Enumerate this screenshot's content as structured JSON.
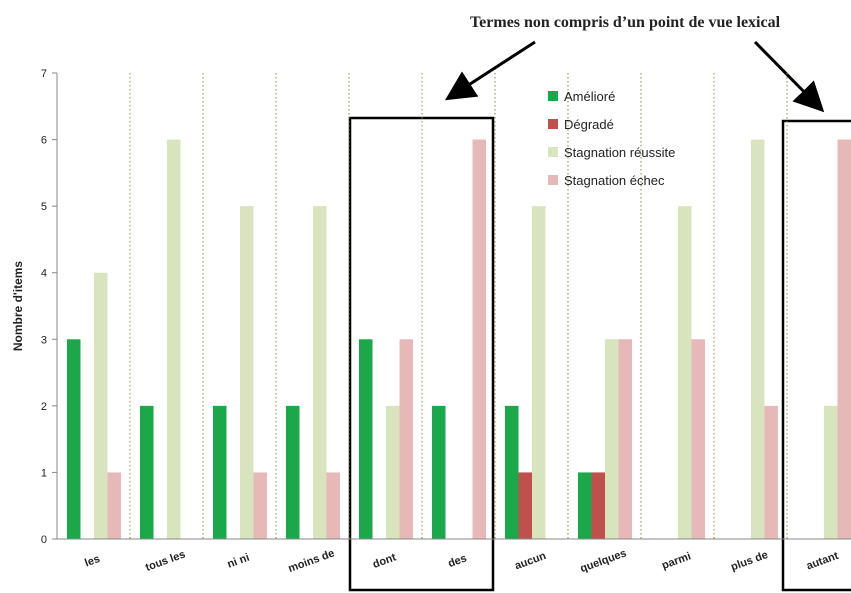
{
  "chart_data": {
    "type": "bar",
    "annotation": "Termes non compris d’un point de vue lexical",
    "y_label": "Nombre d'items",
    "categories": [
      "les",
      "tous les",
      "ni ni",
      "moins de",
      "dont",
      "des",
      "aucun",
      "quelques",
      "parmi",
      "plus de",
      "autant"
    ],
    "series": [
      {
        "name": "Amélioré",
        "color": "#1aa84b",
        "values": [
          3,
          2,
          2,
          2,
          3,
          2,
          2,
          1,
          0,
          0,
          0
        ]
      },
      {
        "name": "Dégradé",
        "color": "#c0504d",
        "values": [
          0,
          0,
          0,
          0,
          0,
          0,
          1,
          1,
          0,
          0,
          0
        ]
      },
      {
        "name": "Stagnation réussite",
        "color": "#d7e4bd",
        "values": [
          4,
          6,
          5,
          5,
          2,
          0,
          5,
          3,
          5,
          6,
          2
        ]
      },
      {
        "name": "Stagnation échec",
        "color": "#e6b9b8",
        "values": [
          1,
          0,
          1,
          1,
          3,
          6,
          0,
          3,
          3,
          2,
          6
        ]
      }
    ],
    "ylim": [
      0,
      7
    ],
    "yticks": [
      0,
      1,
      2,
      3,
      4,
      5,
      6,
      7
    ],
    "grid": false,
    "legend": "top-right"
  }
}
